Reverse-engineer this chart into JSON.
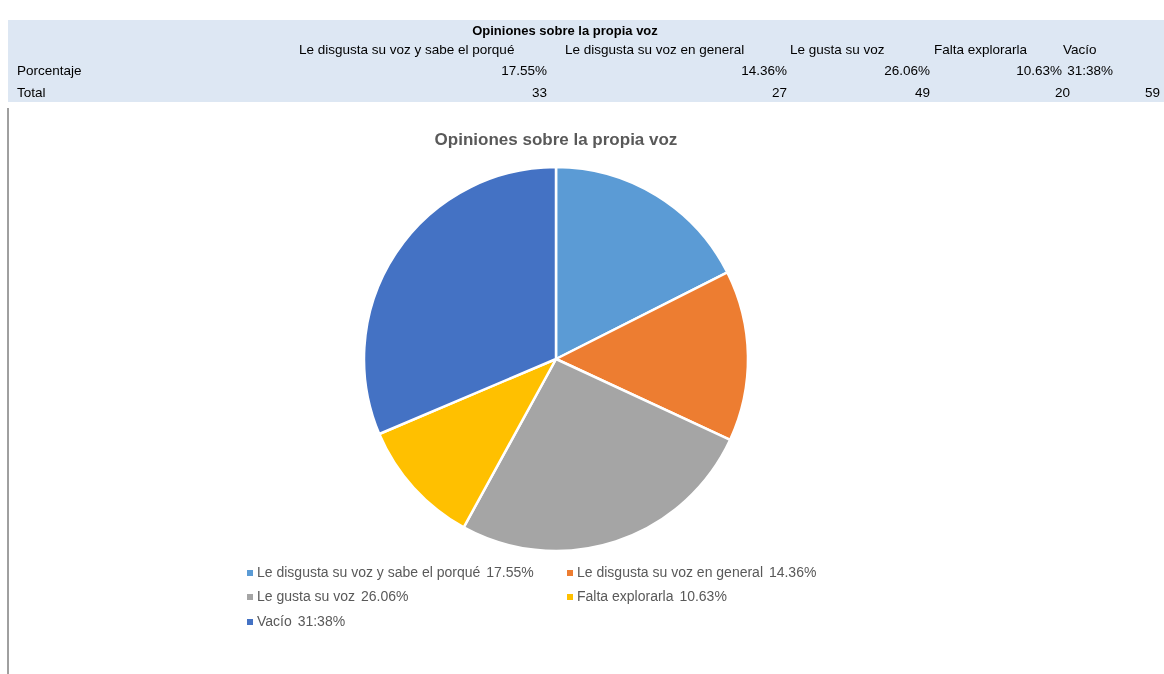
{
  "chart_data": {
    "type": "pie",
    "title": "Opiniones sobre la propia voz",
    "subtitle": "Opiniones sobre la propia voz",
    "categories": [
      "Le disgusta su voz y sabe el porqué",
      "Le disgusta su voz en general",
      "Le gusta su voz",
      "Falta explorarla",
      "Vacío"
    ],
    "values": [
      17.55,
      14.36,
      26.06,
      10.63,
      31.38
    ],
    "value_labels": [
      "17.55%",
      "14.36%",
      "26.06%",
      "10.63%",
      "31:38%"
    ],
    "colors": [
      "#5b9bd5",
      "#ed7d31",
      "#a5a5a5",
      "#ffc000",
      "#4472c4"
    ],
    "annotations": [
      "Le disgusta su voz y sabe el porqué",
      "Le disgusta su voz en general",
      "Le gusta su voz",
      "Falta explorarla",
      "Vacío",
      "Porcentaje",
      "17.55%",
      "14.36%",
      "26.06%",
      "10.63%",
      "31:38%",
      "Total",
      "33",
      "27",
      "49",
      "20",
      "59"
    ],
    "legend": "bottom"
  }
}
